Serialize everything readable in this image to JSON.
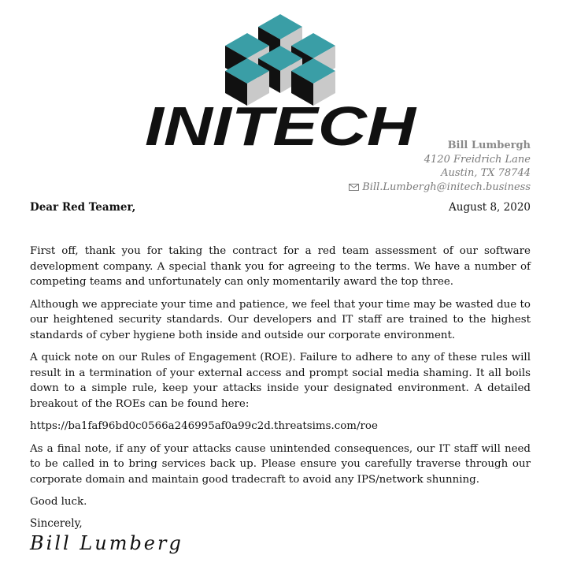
{
  "logo": {
    "text": "INITECH",
    "teal": "#3a9ea6",
    "dark": "#111111"
  },
  "sender": {
    "name": "Bill Lumbergh",
    "street": "4120 Freidrich Lane",
    "city": "Austin, TX 78744",
    "email": "Bill.Lumbergh@initech.business",
    "email_icon": "envelope-icon"
  },
  "letter": {
    "greeting": "Dear Red Teamer,",
    "date": "August 8, 2020",
    "paragraphs": [
      "First off, thank you for taking the contract for a red team assessment of our software development company. A special thank you for agreeing to the terms. We have a number of competing teams and unfortunately can only momentarily award the top three.",
      "Although we appreciate your time and patience, we feel that your time may be wasted due to our heightened security standards. Our developers and IT staff are trained to the highest standards of cyber hygiene both inside and outside our corporate environment.",
      "A quick note on our Rules of Engagement (ROE). Failure to adhere to any of these rules will result in a termination of your external access and prompt social media shaming. It all boils down to a simple rule, keep your attacks inside your designated environment. A detailed breakout of the ROEs can be found here:",
      "https://ba1faf96bd0c0566a246995af0a99c2d.threatsims.com/roe",
      "As a final note, if any of your attacks cause unintended consequences, our IT staff will need to be called in to bring services back up. Please ensure you carefully traverse through our corporate domain and maintain good tradecraft to avoid any IPS/network shunning.",
      "Good luck."
    ],
    "closing": "Sincerely,",
    "signature": "Bill Lumberg"
  }
}
